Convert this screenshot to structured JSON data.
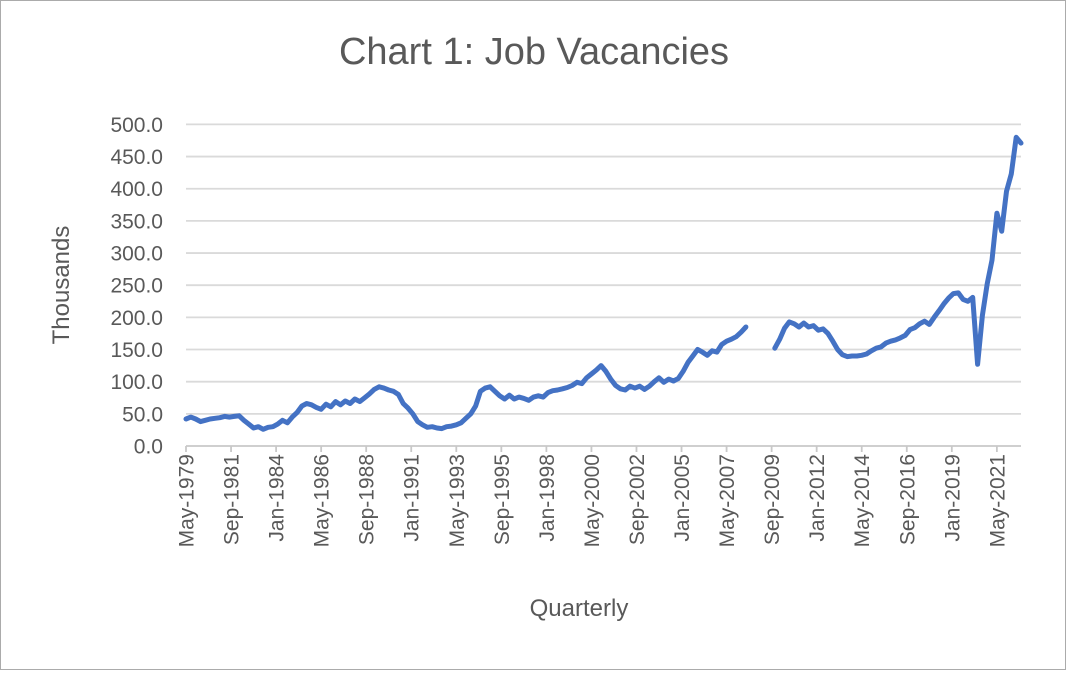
{
  "window": {
    "background": "#FFFFFF",
    "border_color": "#ABABAB"
  },
  "colors": {
    "line": "#4472C4",
    "text": "#595959",
    "gridline": "#DADADA",
    "axis_line": "#C8C8C8",
    "tick": "#C8C8C8"
  },
  "chart_data": {
    "type": "line",
    "title": "Chart 1: Job Vacancies",
    "xlabel": "Quarterly",
    "ylabel": "Thousands",
    "ylim": [
      0,
      500
    ],
    "ytick_interval": 50,
    "grid": "horizontal",
    "legend": "none",
    "ytick_labels": [
      "0.0",
      "50.0",
      "100.0",
      "150.0",
      "200.0",
      "250.0",
      "300.0",
      "350.0",
      "400.0",
      "450.0",
      "500.0"
    ],
    "xtick_labels": [
      "May-1979",
      "Sep-1981",
      "Jan-1984",
      "May-1986",
      "Sep-1988",
      "Jan-1991",
      "May-1993",
      "Sep-1995",
      "Jan-1998",
      "May-2000",
      "Sep-2002",
      "Jan-2005",
      "May-2007",
      "Sep-2009",
      "Jan-2012",
      "May-2014",
      "Sep-2016",
      "Jan-2019",
      "May-2021"
    ],
    "xtick_interval_months": 28,
    "series": [
      {
        "name": "Job Vacancies",
        "unit": "thousands",
        "frequency": "quarterly",
        "start": "May-1979",
        "end": "Aug-2022",
        "gap": [
          "Aug-2008",
          "Aug-2009"
        ],
        "color": "#4472C4",
        "dates": [
          "May-1979",
          "Aug-1979",
          "Nov-1979",
          "Feb-1980",
          "May-1980",
          "Aug-1980",
          "Nov-1980",
          "Feb-1981",
          "May-1981",
          "Aug-1981",
          "Nov-1981",
          "Feb-1982",
          "May-1982",
          "Aug-1982",
          "Nov-1982",
          "Feb-1983",
          "May-1983",
          "Aug-1983",
          "Nov-1983",
          "Feb-1984",
          "May-1984",
          "Aug-1984",
          "Nov-1984",
          "Feb-1985",
          "May-1985",
          "Aug-1985",
          "Nov-1985",
          "Feb-1986",
          "May-1986",
          "Aug-1986",
          "Nov-1986",
          "Feb-1987",
          "May-1987",
          "Aug-1987",
          "Nov-1987",
          "Feb-1988",
          "May-1988",
          "Aug-1988",
          "Nov-1988",
          "Feb-1989",
          "May-1989",
          "Aug-1989",
          "Nov-1989",
          "Feb-1990",
          "May-1990",
          "Aug-1990",
          "Nov-1990",
          "Feb-1991",
          "May-1991",
          "Aug-1991",
          "Nov-1991",
          "Feb-1992",
          "May-1992",
          "Aug-1992",
          "Nov-1992",
          "Feb-1993",
          "May-1993",
          "Aug-1993",
          "Nov-1993",
          "Feb-1994",
          "May-1994",
          "Aug-1994",
          "Nov-1994",
          "Feb-1995",
          "May-1995",
          "Aug-1995",
          "Nov-1995",
          "Feb-1996",
          "May-1996",
          "Aug-1996",
          "Nov-1996",
          "Feb-1997",
          "May-1997",
          "Aug-1997",
          "Nov-1997",
          "Feb-1998",
          "May-1998",
          "Aug-1998",
          "Nov-1998",
          "Feb-1999",
          "May-1999",
          "Aug-1999",
          "Nov-1999",
          "Feb-2000",
          "May-2000",
          "Aug-2000",
          "Nov-2000",
          "Feb-2001",
          "May-2001",
          "Aug-2001",
          "Nov-2001",
          "Feb-2002",
          "May-2002",
          "Aug-2002",
          "Nov-2002",
          "Feb-2003",
          "May-2003",
          "Aug-2003",
          "Nov-2003",
          "Feb-2004",
          "May-2004",
          "Aug-2004",
          "Nov-2004",
          "Feb-2005",
          "May-2005",
          "Aug-2005",
          "Nov-2005",
          "Feb-2006",
          "May-2006",
          "Aug-2006",
          "Nov-2006",
          "Feb-2007",
          "May-2007",
          "Aug-2007",
          "Nov-2007",
          "Feb-2008",
          "May-2008",
          "Aug-2008",
          "Nov-2008",
          "Feb-2009",
          "May-2009",
          "Aug-2009",
          "Nov-2009",
          "Feb-2010",
          "May-2010",
          "Aug-2010",
          "Nov-2010",
          "Feb-2011",
          "May-2011",
          "Aug-2011",
          "Nov-2011",
          "Feb-2012",
          "May-2012",
          "Aug-2012",
          "Nov-2012",
          "Feb-2013",
          "May-2013",
          "Aug-2013",
          "Nov-2013",
          "Feb-2014",
          "May-2014",
          "Aug-2014",
          "Nov-2014",
          "Feb-2015",
          "May-2015",
          "Aug-2015",
          "Nov-2015",
          "Feb-2016",
          "May-2016",
          "Aug-2016",
          "Nov-2016",
          "Feb-2017",
          "May-2017",
          "Aug-2017",
          "Nov-2017",
          "Feb-2018",
          "May-2018",
          "Aug-2018",
          "Nov-2018",
          "Feb-2019",
          "May-2019",
          "Aug-2019",
          "Nov-2019",
          "Feb-2020",
          "May-2020",
          "Aug-2020",
          "Nov-2020",
          "Feb-2021",
          "May-2021",
          "Aug-2021",
          "Nov-2021",
          "Feb-2022",
          "May-2022",
          "Aug-2022"
        ],
        "values": [
          42,
          45,
          42,
          38,
          40,
          42,
          43,
          44,
          46,
          45,
          46,
          47,
          40,
          34,
          28,
          30,
          26,
          29,
          30,
          34,
          40,
          36,
          45,
          52,
          62,
          66,
          64,
          60,
          57,
          65,
          61,
          69,
          64,
          70,
          66,
          73,
          69,
          75,
          81,
          88,
          92,
          90,
          87,
          85,
          80,
          66,
          59,
          50,
          38,
          33,
          29,
          30,
          28,
          27,
          30,
          31,
          33,
          36,
          43,
          50,
          62,
          85,
          90,
          92,
          85,
          78,
          73,
          79,
          73,
          76,
          74,
          71,
          76,
          78,
          76,
          83,
          86,
          87,
          89,
          91,
          94,
          99,
          97,
          106,
          112,
          118,
          125,
          116,
          104,
          94,
          89,
          87,
          93,
          90,
          93,
          88,
          93,
          100,
          106,
          99,
          104,
          101,
          105,
          116,
          130,
          140,
          150,
          146,
          141,
          148,
          146,
          158,
          163,
          166,
          170,
          177,
          185,
          null,
          null,
          null,
          null,
          null,
          152,
          166,
          183,
          193,
          190,
          185,
          191,
          185,
          187,
          180,
          182,
          175,
          163,
          150,
          142,
          139,
          140,
          140,
          141,
          143,
          148,
          152,
          154,
          160,
          163,
          165,
          168,
          172,
          181,
          184,
          190,
          194,
          189,
          200,
          210,
          221,
          230,
          237,
          238,
          228,
          225,
          231,
          127,
          203,
          252,
          289,
          362,
          334,
          396,
          423,
          480,
          471
        ]
      }
    ]
  }
}
